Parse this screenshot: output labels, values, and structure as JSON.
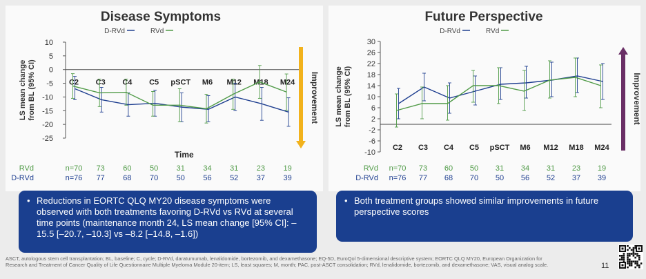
{
  "legend_colors": {
    "drvd": "#1f3f90",
    "rvd": "#4f9a46",
    "improve_left": "#f2b21c",
    "improve_right": "#6a2f66",
    "callout_bg": "#1a3f8f"
  },
  "labels": {
    "rvd_row": "RVd",
    "drvd_row": "D-RVd",
    "improvement": "Improvement"
  },
  "chart_data": [
    {
      "type": "line",
      "title": "Disease Symptoms",
      "legend": [
        "D-RVd",
        "RVd"
      ],
      "ylabel": "LS mean change from BL (95% CI)",
      "xlabel": "Time",
      "ylim": [
        -25,
        10
      ],
      "yticks": [
        10,
        5,
        0,
        -5,
        -10,
        -15,
        -20,
        -25
      ],
      "categories": [
        "C2",
        "C3",
        "C4",
        "C5",
        "pSCT",
        "M6",
        "M12",
        "M18",
        "M24"
      ],
      "series": [
        {
          "name": "D-RVd",
          "values": [
            -7,
            -11,
            -12.8,
            -12.3,
            -13.7,
            -14.5,
            -10,
            -12.5,
            -15.5
          ],
          "lower": [
            -11,
            -15.5,
            -17,
            -17,
            -19,
            -19,
            -15,
            -18.5,
            -20.7
          ],
          "upper": [
            -2.5,
            -6.5,
            -8.5,
            -7.5,
            -8.5,
            -9.5,
            -5,
            -6.5,
            -10.3
          ]
        },
        {
          "name": "RVd",
          "values": [
            -6,
            -8.5,
            -8.3,
            -13,
            -13,
            -14.3,
            -9,
            -4.5,
            -8.2
          ],
          "lower": [
            -10.5,
            -13.5,
            -13,
            -17,
            -19,
            -19.5,
            -14.5,
            -10.5,
            -14.8
          ],
          "upper": [
            -1.5,
            -3.5,
            -3.5,
            -8,
            -7,
            -9,
            -3.5,
            1.5,
            -1.6
          ]
        }
      ],
      "n_rvd": [
        "n=70",
        "73",
        "60",
        "50",
        "31",
        "34",
        "31",
        "23",
        "19"
      ],
      "n_drvd": [
        "n=76",
        "77",
        "68",
        "70",
        "50",
        "56",
        "52",
        "37",
        "39"
      ]
    },
    {
      "type": "line",
      "title": "Future Perspective",
      "legend": [
        "D-RVd",
        "RVd"
      ],
      "ylabel": "LS mean change from BL (95% CI)",
      "xlabel": "",
      "ylim": [
        -10,
        30
      ],
      "yticks": [
        30,
        26,
        22,
        18,
        14,
        10,
        6,
        2,
        -2,
        -6,
        -10
      ],
      "categories": [
        "C2",
        "C3",
        "C4",
        "C5",
        "pSCT",
        "M6",
        "M12",
        "M18",
        "M24"
      ],
      "series": [
        {
          "name": "D-RVd",
          "values": [
            7.5,
            13.5,
            9.5,
            12,
            14.5,
            15,
            16,
            17.5,
            15.5
          ],
          "lower": [
            2,
            8.5,
            4,
            7,
            9,
            9.5,
            10,
            11.5,
            9
          ],
          "upper": [
            13,
            18.5,
            15,
            17.5,
            20.5,
            21,
            22.5,
            24,
            22
          ]
        },
        {
          "name": "RVd",
          "values": [
            5,
            7.5,
            7.5,
            14,
            14,
            12,
            16,
            17,
            14
          ],
          "lower": [
            -1,
            2,
            1.5,
            8,
            7.5,
            5,
            9.5,
            10,
            6
          ],
          "upper": [
            11,
            13.5,
            14,
            19.5,
            20.5,
            19.5,
            23,
            24,
            21.5
          ]
        }
      ],
      "n_rvd": [
        "n=70",
        "73",
        "60",
        "50",
        "31",
        "34",
        "31",
        "23",
        "19"
      ],
      "n_drvd": [
        "n=76",
        "77",
        "68",
        "70",
        "50",
        "56",
        "52",
        "37",
        "39"
      ]
    }
  ],
  "callouts": {
    "left": "Reductions in EORTC QLQ MY20 disease symptoms were observed with both treatments favoring D-RVd vs RVd at several time points (maintenance month 24, LS mean change [95% CI]: –15.5 [–20.7, –10.3] vs –8.2 [–14.8, –1.6])",
    "right": "Both treatment groups showed similar improvements in future perspective scores",
    "bullet": "•"
  },
  "footnote": "ASCT, autologous stem cell transplantation; BL, baseline; C, cycle; D-RVd, daratumumab, lenalidomide, bortezomib, and dexamethasone; EQ-5D, EuroQol 5-dimensional descriptive system; EORTC QLQ MY20, European Organization for Research and Treatment of Cancer Quality of Life Questionnaire Multiple Myeloma Module 20-item; LS, least squares; M, month; PAC, post-ASCT consolidation; RVd, lenalidomide, bortezomib, and dexamethasone; VAS, visual analog scale.",
  "page_number": "11",
  "qr_icon": "qr-code-icon"
}
